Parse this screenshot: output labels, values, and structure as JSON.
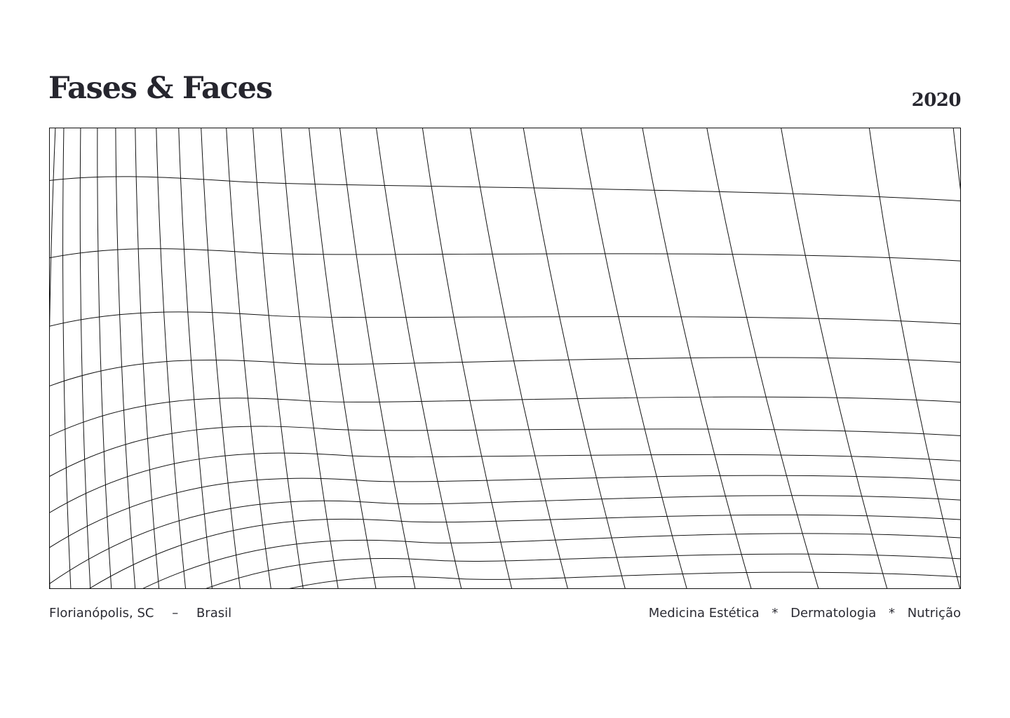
{
  "header": {
    "title": "Fases & Faces",
    "year": "2020"
  },
  "footer": {
    "location_city": "Florianópolis, SC",
    "location_separator": "–",
    "location_country": "Brasil",
    "services": [
      "Medicina Estética",
      "Dermatologia",
      "Nutrição"
    ],
    "services_separator": "*"
  },
  "colors": {
    "text": "#26262e",
    "grid_line": "#111111",
    "background": "#ffffff"
  }
}
